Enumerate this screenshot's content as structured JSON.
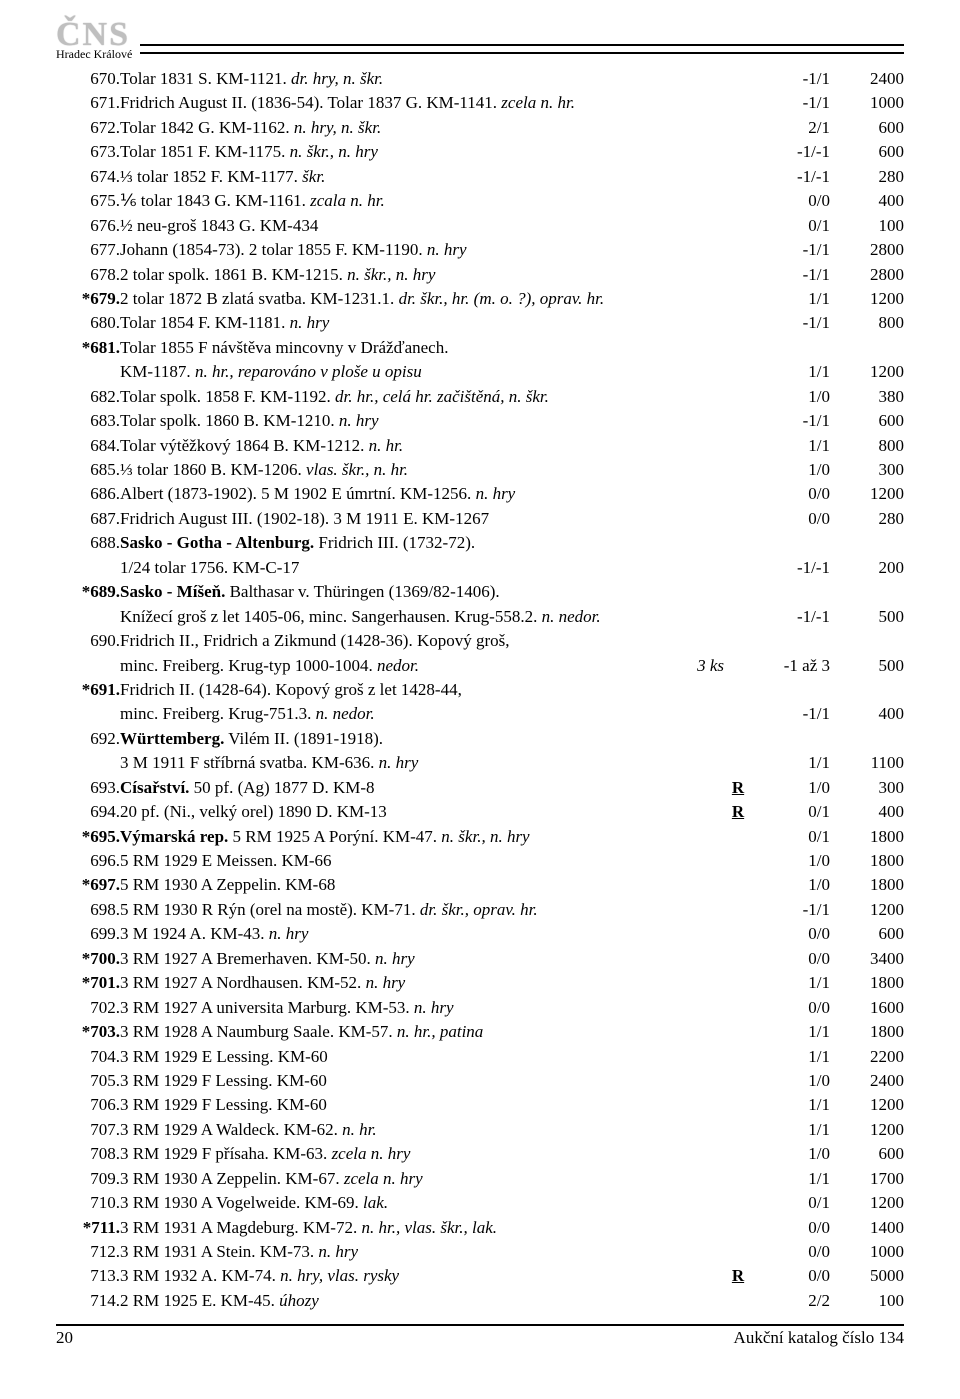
{
  "brand": {
    "logo": "ČNS",
    "sub": "Hradec Králové"
  },
  "footer": {
    "page": "20",
    "label": "Aukční katalog číslo 134"
  },
  "rows": [
    {
      "lot": "670.",
      "desc": [
        {
          "t": "Tolar 1831 S. KM-1121. "
        },
        {
          "t": "dr. hry, n. škr.",
          "i": true
        }
      ],
      "grade": "-1/1",
      "price": "2400"
    },
    {
      "lot": "671.",
      "desc": [
        {
          "t": "Fridrich August II. (1836-54). Tolar 1837 G. KM-1141. "
        },
        {
          "t": "zcela n. hr.",
          "i": true
        }
      ],
      "grade": "-1/1",
      "price": "1000"
    },
    {
      "lot": "672.",
      "desc": [
        {
          "t": "Tolar 1842 G. KM-1162. "
        },
        {
          "t": "n. hry, n. škr.",
          "i": true
        }
      ],
      "grade": "2/1",
      "price": "600"
    },
    {
      "lot": "673.",
      "desc": [
        {
          "t": "Tolar 1851 F. KM-1175. "
        },
        {
          "t": "n. škr., n. hry",
          "i": true
        }
      ],
      "grade": "-1/-1",
      "price": "600"
    },
    {
      "lot": "674.",
      "desc": [
        {
          "t": "⅓ tolar 1852 F. KM-1177. "
        },
        {
          "t": "škr.",
          "i": true
        }
      ],
      "grade": "-1/-1",
      "price": "280"
    },
    {
      "lot": "675.",
      "desc": [
        {
          "t": "⅙ tolar 1843 G. KM-1161. "
        },
        {
          "t": "zcala n. hr.",
          "i": true
        }
      ],
      "grade": "0/0",
      "price": "400"
    },
    {
      "lot": "676.",
      "desc": [
        {
          "t": "½ neu-groš 1843 G. KM-434"
        }
      ],
      "grade": "0/1",
      "price": "100"
    },
    {
      "lot": "677.",
      "desc": [
        {
          "t": "Johann (1854-73). 2 tolar 1855 F. KM-1190. "
        },
        {
          "t": "n. hry",
          "i": true
        }
      ],
      "grade": "-1/1",
      "price": "2800"
    },
    {
      "lot": "678.",
      "desc": [
        {
          "t": "2 tolar spolk. 1861 B. KM-1215. "
        },
        {
          "t": "n. škr., n. hry",
          "i": true
        }
      ],
      "grade": "-1/1",
      "price": "2800"
    },
    {
      "lot": "*679.",
      "bold": true,
      "desc": [
        {
          "t": "2 tolar 1872 B zlatá svatba. KM-1231.1. "
        },
        {
          "t": "dr. škr., hr. (m. o. ?), oprav. hr.",
          "i": true
        }
      ],
      "grade": "1/1",
      "price": "1200"
    },
    {
      "lot": "680.",
      "desc": [
        {
          "t": "Tolar 1854 F. KM-1181. "
        },
        {
          "t": "n. hry",
          "i": true
        }
      ],
      "grade": "-1/1",
      "price": "800"
    },
    {
      "lot": "*681.",
      "bold": true,
      "desc": [
        {
          "t": "Tolar 1855 F návštěva mincovny v Drážďanech."
        }
      ]
    },
    {
      "cont": true,
      "desc": [
        {
          "t": "KM-1187. "
        },
        {
          "t": "n. hr., reparováno v ploše u opisu",
          "i": true
        }
      ],
      "grade": "1/1",
      "price": "1200"
    },
    {
      "lot": "682.",
      "desc": [
        {
          "t": "Tolar spolk. 1858 F. KM-1192. "
        },
        {
          "t": "dr. hr., celá hr. začištěná, n. škr.",
          "i": true
        }
      ],
      "grade": "1/0",
      "price": "380"
    },
    {
      "lot": "683.",
      "desc": [
        {
          "t": "Tolar spolk. 1860 B. KM-1210. "
        },
        {
          "t": "n. hry",
          "i": true
        }
      ],
      "grade": "-1/1",
      "price": "600"
    },
    {
      "lot": "684.",
      "desc": [
        {
          "t": "Tolar výtěžkový 1864 B. KM-1212. "
        },
        {
          "t": "n. hr.",
          "i": true
        }
      ],
      "grade": "1/1",
      "price": "800"
    },
    {
      "lot": "685.",
      "desc": [
        {
          "t": "⅓ tolar 1860 B. KM-1206. "
        },
        {
          "t": "vlas. škr., n. hr.",
          "i": true
        }
      ],
      "grade": "1/0",
      "price": "300"
    },
    {
      "lot": "686.",
      "desc": [
        {
          "t": "Albert (1873-1902). 5 M 1902 E úmrtní. KM-1256. "
        },
        {
          "t": "n. hry",
          "i": true
        }
      ],
      "grade": "0/0",
      "price": "1200"
    },
    {
      "lot": "687.",
      "desc": [
        {
          "t": "Fridrich August III. (1902-18). 3 M 1911 E. KM-1267"
        }
      ],
      "grade": "0/0",
      "price": "280"
    },
    {
      "lot": "688.",
      "desc": [
        {
          "t": "Sasko - Gotha - Altenburg.",
          "b": true
        },
        {
          "t": " Fridrich III. (1732-72)."
        }
      ]
    },
    {
      "cont": true,
      "desc": [
        {
          "t": "1/24 tolar 1756. KM-C-17"
        }
      ],
      "grade": "-1/-1",
      "price": "200"
    },
    {
      "lot": "*689.",
      "bold": true,
      "desc": [
        {
          "t": "Sasko - Míšeň.",
          "b": true
        },
        {
          "t": " Balthasar v. Thüringen (1369/82-1406)."
        }
      ]
    },
    {
      "cont": true,
      "desc": [
        {
          "t": "Knížecí groš z let 1405-06, minc. Sangerhausen. Krug-558.2. "
        },
        {
          "t": "n. nedor.",
          "i": true
        }
      ],
      "grade": "-1/-1",
      "price": "500"
    },
    {
      "lot": "690.",
      "desc": [
        {
          "t": "Fridrich II., Fridrich a Zikmund (1428-36). Kopový groš,"
        }
      ]
    },
    {
      "cont": true,
      "desc": [
        {
          "t": "minc. Freiberg. Krug-typ 1000-1004. "
        },
        {
          "t": "nedor.",
          "i": true
        }
      ],
      "qty": "3 ks",
      "grade": "-1 až 3",
      "price": "500"
    },
    {
      "lot": "*691.",
      "bold": true,
      "desc": [
        {
          "t": "Fridrich II. (1428-64). Kopový groš z let 1428-44,"
        }
      ]
    },
    {
      "cont": true,
      "desc": [
        {
          "t": "minc. Freiberg. Krug-751.3. "
        },
        {
          "t": "n. nedor.",
          "i": true
        }
      ],
      "grade": "-1/1",
      "price": "400"
    },
    {
      "lot": "692.",
      "desc": [
        {
          "t": "Württemberg.",
          "b": true
        },
        {
          "t": " Vilém II. (1891-1918)."
        }
      ]
    },
    {
      "cont": true,
      "desc": [
        {
          "t": "3 M 1911 F stříbrná svatba. KM-636. "
        },
        {
          "t": "n. hry",
          "i": true
        }
      ],
      "grade": "1/1",
      "price": "1100"
    },
    {
      "lot": "693.",
      "desc": [
        {
          "t": "Císařství.",
          "b": true
        },
        {
          "t": " 50 pf. (Ag) 1877 D. KM-8"
        }
      ],
      "rare": "R",
      "grade": "1/0",
      "price": "300"
    },
    {
      "lot": "694.",
      "desc": [
        {
          "t": "20 pf. (Ni., velký orel) 1890 D. KM-13"
        }
      ],
      "rare": "R",
      "grade": "0/1",
      "price": "400"
    },
    {
      "lot": "*695.",
      "bold": true,
      "desc": [
        {
          "t": "Výmarská rep.",
          "b": true
        },
        {
          "t": " 5 RM 1925 A Porýní. KM-47. "
        },
        {
          "t": "n. škr., n. hry",
          "i": true
        }
      ],
      "grade": "0/1",
      "price": "1800"
    },
    {
      "lot": "696.",
      "desc": [
        {
          "t": "5 RM 1929 E Meissen. KM-66"
        }
      ],
      "grade": "1/0",
      "price": "1800"
    },
    {
      "lot": "*697.",
      "bold": true,
      "desc": [
        {
          "t": "5 RM 1930 A Zeppelin. KM-68"
        }
      ],
      "grade": "1/0",
      "price": "1800"
    },
    {
      "lot": "698.",
      "desc": [
        {
          "t": "5 RM 1930 R Rýn (orel na mostě). KM-71. "
        },
        {
          "t": "dr. škr., oprav. hr.",
          "i": true
        }
      ],
      "grade": "-1/1",
      "price": "1200"
    },
    {
      "lot": "699.",
      "desc": [
        {
          "t": "3 M 1924 A. KM-43. "
        },
        {
          "t": "n. hry",
          "i": true
        }
      ],
      "grade": "0/0",
      "price": "600"
    },
    {
      "lot": "*700.",
      "bold": true,
      "desc": [
        {
          "t": "3 RM 1927 A Bremerhaven. KM-50. "
        },
        {
          "t": "n. hry",
          "i": true
        }
      ],
      "grade": "0/0",
      "price": "3400"
    },
    {
      "lot": "*701.",
      "bold": true,
      "desc": [
        {
          "t": "3 RM 1927 A Nordhausen. KM-52. "
        },
        {
          "t": "n. hry",
          "i": true
        }
      ],
      "grade": "1/1",
      "price": "1800"
    },
    {
      "lot": "702.",
      "desc": [
        {
          "t": "3 RM 1927 A universita Marburg. KM-53. "
        },
        {
          "t": "n. hry",
          "i": true
        }
      ],
      "grade": "0/0",
      "price": "1600"
    },
    {
      "lot": "*703.",
      "bold": true,
      "desc": [
        {
          "t": "3 RM 1928 A Naumburg Saale. KM-57. "
        },
        {
          "t": "n. hr., patina",
          "i": true
        }
      ],
      "grade": "1/1",
      "price": "1800"
    },
    {
      "lot": "704.",
      "desc": [
        {
          "t": "3 RM 1929 E Lessing. KM-60"
        }
      ],
      "grade": "1/1",
      "price": "2200"
    },
    {
      "lot": "705.",
      "desc": [
        {
          "t": "3 RM 1929 F Lessing. KM-60"
        }
      ],
      "grade": "1/0",
      "price": "2400"
    },
    {
      "lot": "706.",
      "desc": [
        {
          "t": "3 RM 1929 F Lessing. KM-60"
        }
      ],
      "grade": "1/1",
      "price": "1200"
    },
    {
      "lot": "707.",
      "desc": [
        {
          "t": "3 RM 1929 A Waldeck. KM-62. "
        },
        {
          "t": "n. hr.",
          "i": true
        }
      ],
      "grade": "1/1",
      "price": "1200"
    },
    {
      "lot": "708.",
      "desc": [
        {
          "t": "3 RM 1929 F přísaha. KM-63. "
        },
        {
          "t": "zcela n. hry",
          "i": true
        }
      ],
      "grade": "1/0",
      "price": "600"
    },
    {
      "lot": "709.",
      "desc": [
        {
          "t": "3 RM 1930 A Zeppelin. KM-67. "
        },
        {
          "t": "zcela n. hry",
          "i": true
        }
      ],
      "grade": "1/1",
      "price": "1700"
    },
    {
      "lot": "710.",
      "desc": [
        {
          "t": "3 RM 1930 A Vogelweide. KM-69. "
        },
        {
          "t": "lak.",
          "i": true
        }
      ],
      "grade": "0/1",
      "price": "1200"
    },
    {
      "lot": "*711.",
      "bold": true,
      "desc": [
        {
          "t": "3 RM 1931 A Magdeburg. KM-72. "
        },
        {
          "t": "n. hr., vlas. škr., lak.",
          "i": true
        }
      ],
      "grade": "0/0",
      "price": "1400"
    },
    {
      "lot": "712.",
      "desc": [
        {
          "t": "3 RM 1931 A Stein. KM-73. "
        },
        {
          "t": "n. hry",
          "i": true
        }
      ],
      "grade": "0/0",
      "price": "1000"
    },
    {
      "lot": "713.",
      "desc": [
        {
          "t": "3 RM 1932 A. KM-74. "
        },
        {
          "t": "n. hry, vlas. rysky",
          "i": true
        }
      ],
      "rare": "R",
      "grade": "0/0",
      "price": "5000"
    },
    {
      "lot": "714.",
      "desc": [
        {
          "t": "2 RM 1925 E. KM-45. "
        },
        {
          "t": "úhozy",
          "i": true
        }
      ],
      "grade": "2/2",
      "price": "100"
    }
  ]
}
